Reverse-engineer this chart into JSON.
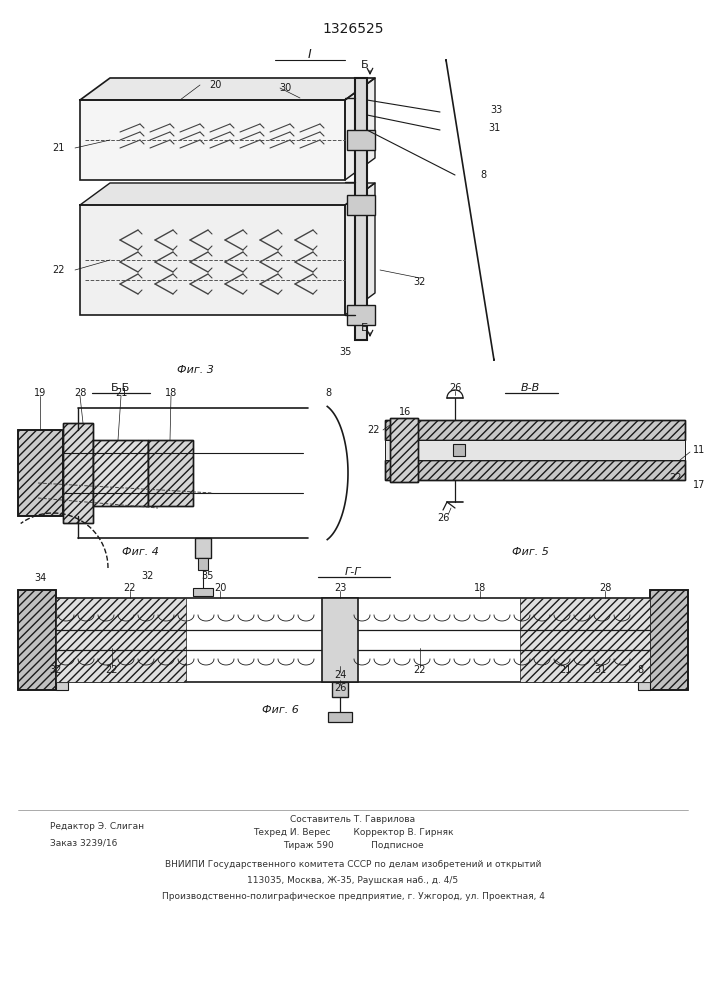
{
  "title": "1326525",
  "bg_color": "#ffffff",
  "line_color": "#1a1a1a",
  "footer": {
    "col1_line1": "Редактор Э. Слиган",
    "col1_line2": "Заказ 3239/16",
    "col2_line1": "Составитель Т. Гаврилова",
    "col2_line2": "Техред И. Верес        Корректор В. Гирняк",
    "col2_line3": "Тираж 590             Подписное",
    "inst1": "ВНИИПИ Государственного комитета СССР по делам изобретений и открытий",
    "inst2": "113035, Москва, Ж-35, Раушская наб., д. 4/5",
    "inst3": "Производственно-полиграфическое предприятие, г. Ужгород, ул. Проектная, 4"
  }
}
